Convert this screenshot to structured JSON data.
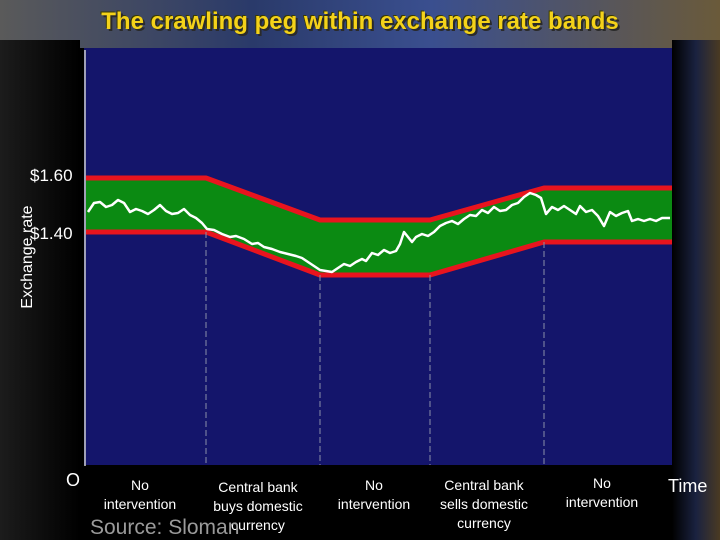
{
  "title": "The crawling peg within exchange rate bands",
  "y_axis_label": "Exchange rate",
  "x_axis_label": "Time",
  "origin_label": "O",
  "price_labels": [
    "$1.60",
    "$1.40"
  ],
  "phases": [
    {
      "label_lines": [
        "No",
        "intervention"
      ]
    },
    {
      "label_lines": [
        "Central bank",
        "buys domestic",
        "currency"
      ]
    },
    {
      "label_lines": [
        "No",
        "intervention"
      ]
    },
    {
      "label_lines": [
        "Central bank",
        "sells domestic",
        "currency"
      ]
    },
    {
      "label_lines": [
        "No",
        "intervention"
      ]
    }
  ],
  "source": "Source: Sloman",
  "colors": {
    "title": "#f4d21a",
    "panel": "#14156b",
    "band_fill": "#0b8a12",
    "band_edges": "#e8141e",
    "rate_line": "#ffffff",
    "divider_lines": "#8a8fa8"
  }
}
